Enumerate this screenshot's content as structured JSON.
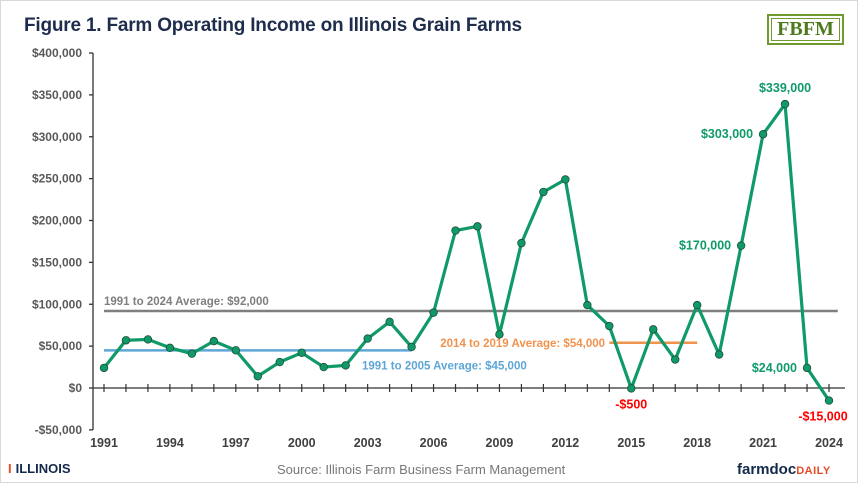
{
  "chart_data": {
    "type": "line",
    "title": "Figure 1. Farm Operating Income on Illinois Grain Farms",
    "source": "Source:  Illinois Farm Business Farm Management",
    "x": [
      1991,
      1992,
      1993,
      1994,
      1995,
      1996,
      1997,
      1998,
      1999,
      2000,
      2001,
      2002,
      2003,
      2004,
      2005,
      2006,
      2007,
      2008,
      2009,
      2010,
      2011,
      2012,
      2013,
      2014,
      2015,
      2016,
      2017,
      2018,
      2019,
      2020,
      2021,
      2022,
      2023,
      2024
    ],
    "series": [
      {
        "values": [
          24000,
          57000,
          58000,
          48000,
          41000,
          56000,
          45000,
          14000,
          31000,
          42000,
          25000,
          27000,
          59000,
          79000,
          49000,
          90000,
          188000,
          193000,
          64000,
          173000,
          234000,
          249000,
          99000,
          74000,
          -500,
          70000,
          34000,
          99000,
          40000,
          170000,
          303000,
          339000,
          24000,
          -15000
        ],
        "color": "#0f9a68"
      }
    ],
    "data_labels": [
      {
        "year": 2015,
        "text": "-$500",
        "color": "#ff0000",
        "pos": "below"
      },
      {
        "year": 2020,
        "text": "$170,000",
        "color": "#0f9a68",
        "pos": "left"
      },
      {
        "year": 2021,
        "text": "$303,000",
        "color": "#0f9a68",
        "pos": "left"
      },
      {
        "year": 2022,
        "text": "$339,000",
        "color": "#0f9a68",
        "pos": "above"
      },
      {
        "year": 2023,
        "text": "$24,000",
        "color": "#0f9a68",
        "pos": "left"
      },
      {
        "year": 2024,
        "text": "-$15,000",
        "color": "#ff0000",
        "pos": "below"
      }
    ],
    "reference_lines": [
      {
        "label": "1991 to 2024 Average: $92,000",
        "value": 92000,
        "x_range": [
          1991,
          2024.4
        ],
        "color": "#7f7f7f"
      },
      {
        "label": "1991 to 2005 Average: $45,000",
        "value": 45000,
        "x_range": [
          1991,
          2005
        ],
        "color": "#5ea6d6"
      },
      {
        "label": "2014 to 2019 Average: $54,000",
        "value": 54000,
        "x_range": [
          2014,
          2018
        ],
        "color": "#f0934e"
      }
    ],
    "ylim": [
      -50000,
      400000
    ],
    "y_ticks": [
      -50000,
      0,
      50000,
      100000,
      150000,
      200000,
      250000,
      300000,
      350000,
      400000
    ],
    "y_tick_labels": [
      "-$50,000",
      "$0",
      "$50,000",
      "$100,000",
      "$150,000",
      "$200,000",
      "$250,000",
      "$300,000",
      "$350,000",
      "$400,000"
    ],
    "x_tick_labels": [
      "1991",
      "1994",
      "1997",
      "2000",
      "2003",
      "2006",
      "2009",
      "2012",
      "2015",
      "2018",
      "2021",
      "2024"
    ],
    "grid": false,
    "legend": "none"
  },
  "logos": {
    "fbfm": "FBFM",
    "illinois": "ILLINOIS",
    "illinois_mark": "I",
    "farmdoc": "farmdoc",
    "farmdoc_suffix": "DAILY"
  }
}
